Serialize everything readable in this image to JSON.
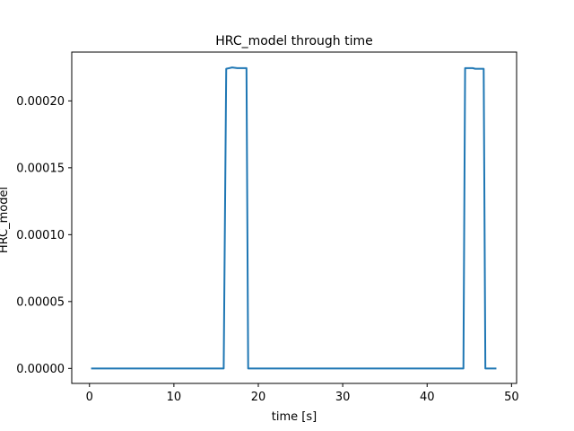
{
  "chart_data": {
    "type": "line",
    "title": "HRC_model through time",
    "xlabel": "time [s]",
    "ylabel": "HRC_model",
    "xlim": [
      -2.1,
      50.6
    ],
    "ylim": [
      -1.12e-05,
      0.0002365
    ],
    "xticks": [
      0,
      10,
      20,
      30,
      40,
      50
    ],
    "xtick_labels": [
      "0",
      "10",
      "20",
      "30",
      "40",
      "50"
    ],
    "yticks": [
      0,
      5e-05,
      0.0001,
      0.00015,
      0.0002
    ],
    "ytick_labels": [
      "0.00000",
      "0.00005",
      "0.00010",
      "0.00015",
      "0.00020"
    ],
    "grid": false,
    "series": [
      {
        "color": "#1f77b4",
        "points": [
          [
            0.3,
            0.0
          ],
          [
            15.9,
            0.0
          ],
          [
            16.2,
            0.000224
          ],
          [
            16.9,
            0.000225
          ],
          [
            17.5,
            0.0002245
          ],
          [
            18.6,
            0.0002245
          ],
          [
            18.8,
            0.0
          ],
          [
            44.3,
            0.0
          ],
          [
            44.5,
            0.0002245
          ],
          [
            45.4,
            0.0002245
          ],
          [
            45.7,
            0.000224
          ],
          [
            46.7,
            0.000224
          ],
          [
            46.9,
            0.0
          ],
          [
            48.1,
            0.0
          ]
        ]
      }
    ]
  }
}
